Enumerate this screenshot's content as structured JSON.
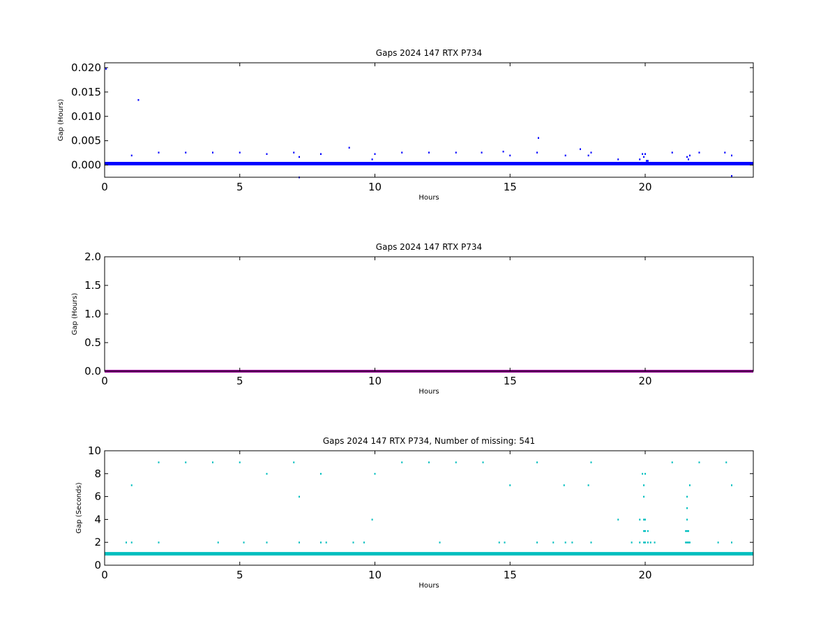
{
  "chart_data": [
    {
      "type": "scatter",
      "title": "Gaps 2024 147 RTX  P734",
      "xlabel": "Hours",
      "ylabel": "Gap (Hours)",
      "xlim": [
        0,
        24
      ],
      "ylim": [
        -0.0025,
        0.021
      ],
      "xticks": [
        "0",
        "5",
        "10",
        "15",
        "20"
      ],
      "xtick_values": [
        0,
        5,
        10,
        15,
        20
      ],
      "yticks": [
        "0.000",
        "0.005",
        "0.010",
        "0.015",
        "0.020"
      ],
      "ytick_values": [
        0,
        0.005,
        0.01,
        0.015,
        0.02
      ],
      "grid": false,
      "color": "#0000ff",
      "baseline": {
        "from": 0,
        "to": 24,
        "value": 0.0003
      },
      "series": [
        {
          "points": [
            [
              0.05,
              0.0198
            ],
            [
              1.25,
              0.0134
            ],
            [
              16.05,
              0.0056
            ],
            [
              17.6,
              0.0033
            ],
            [
              9.05,
              0.0036
            ],
            [
              1.0,
              0.002
            ],
            [
              2.0,
              0.0026
            ],
            [
              3.0,
              0.0026
            ],
            [
              4.0,
              0.0026
            ],
            [
              5.0,
              0.0026
            ],
            [
              6.0,
              0.0023
            ],
            [
              7.0,
              0.0026
            ],
            [
              7.2,
              0.0017
            ],
            [
              7.2,
              -0.0025
            ],
            [
              8.0,
              0.0023
            ],
            [
              9.9,
              0.0012
            ],
            [
              10.0,
              0.0023
            ],
            [
              11.0,
              0.0026
            ],
            [
              12.0,
              0.0026
            ],
            [
              13.0,
              0.0026
            ],
            [
              13.95,
              0.0026
            ],
            [
              14.75,
              0.0028
            ],
            [
              15.0,
              0.002
            ],
            [
              16.0,
              0.0026
            ],
            [
              17.05,
              0.002
            ],
            [
              17.9,
              0.002
            ],
            [
              18.0,
              0.0026
            ],
            [
              19.0,
              0.0012
            ],
            [
              19.8,
              0.0012
            ],
            [
              19.9,
              0.0023
            ],
            [
              19.95,
              0.0017
            ],
            [
              20.0,
              0.0023
            ],
            [
              20.05,
              0.0009
            ],
            [
              20.1,
              0.0009
            ],
            [
              21.0,
              0.0026
            ],
            [
              21.55,
              0.0017
            ],
            [
              21.6,
              0.0012
            ],
            [
              21.65,
              0.002
            ],
            [
              22.0,
              0.0026
            ],
            [
              22.95,
              0.0026
            ],
            [
              23.2,
              0.002
            ],
            [
              23.2,
              -0.0022
            ]
          ]
        }
      ]
    },
    {
      "type": "line",
      "title": "Gaps 2024 147 RTX  P734",
      "xlabel": "Hours",
      "ylabel": "Gap (Hours)",
      "xlim": [
        0,
        24
      ],
      "ylim": [
        0,
        2.0
      ],
      "xticks": [
        "0",
        "5",
        "10",
        "15",
        "20"
      ],
      "xtick_values": [
        0,
        5,
        10,
        15,
        20
      ],
      "yticks": [
        "0.0",
        "0.5",
        "1.0",
        "1.5",
        "2.0"
      ],
      "ytick_values": [
        0,
        0.5,
        1.0,
        1.5,
        2.0
      ],
      "grid": false,
      "color": "#990099",
      "series": [
        {
          "x": [
            0,
            24
          ],
          "values": [
            0,
            0
          ]
        }
      ]
    },
    {
      "type": "scatter",
      "title": "Gaps 2024 147 RTX  P734, Number of missing: 541",
      "xlabel": "Hours",
      "ylabel": "Gap (Seconds)",
      "xlim": [
        0,
        24
      ],
      "ylim": [
        0,
        10
      ],
      "xticks": [
        "0",
        "5",
        "10",
        "15",
        "20"
      ],
      "xtick_values": [
        0,
        5,
        10,
        15,
        20
      ],
      "yticks": [
        "0",
        "2",
        "4",
        "6",
        "8",
        "10"
      ],
      "ytick_values": [
        0,
        2,
        4,
        6,
        8,
        10
      ],
      "grid": false,
      "color": "#00bfbf",
      "baseline": {
        "from": 0,
        "to": 24,
        "value": 1
      },
      "series": [
        {
          "points": [
            [
              2.0,
              9
            ],
            [
              3.0,
              9
            ],
            [
              4.0,
              9
            ],
            [
              5.0,
              9
            ],
            [
              7.0,
              9
            ],
            [
              11.0,
              9
            ],
            [
              12.0,
              9
            ],
            [
              13.0,
              9
            ],
            [
              14.0,
              9
            ],
            [
              16.0,
              9
            ],
            [
              18.0,
              9
            ],
            [
              21.0,
              9
            ],
            [
              22.0,
              9
            ],
            [
              23.0,
              9
            ],
            [
              6.0,
              8
            ],
            [
              8.0,
              8
            ],
            [
              10.0,
              8
            ],
            [
              19.9,
              8
            ],
            [
              20.0,
              8
            ],
            [
              1.0,
              7
            ],
            [
              15.0,
              7
            ],
            [
              17.0,
              7
            ],
            [
              17.9,
              7
            ],
            [
              19.95,
              7
            ],
            [
              21.65,
              7
            ],
            [
              23.2,
              7
            ],
            [
              7.2,
              6
            ],
            [
              19.95,
              6
            ],
            [
              21.55,
              6
            ],
            [
              21.55,
              5
            ],
            [
              9.9,
              4
            ],
            [
              19.0,
              4
            ],
            [
              19.8,
              4
            ],
            [
              19.95,
              4
            ],
            [
              20.0,
              4
            ],
            [
              21.55,
              4
            ],
            [
              19.95,
              3
            ],
            [
              20.0,
              3
            ],
            [
              20.1,
              3
            ],
            [
              21.5,
              3
            ],
            [
              21.55,
              3
            ],
            [
              21.6,
              3
            ],
            [
              0.8,
              2
            ],
            [
              1.0,
              2
            ],
            [
              2.0,
              2
            ],
            [
              4.2,
              2
            ],
            [
              5.15,
              2
            ],
            [
              6.0,
              2
            ],
            [
              7.2,
              2
            ],
            [
              8.0,
              2
            ],
            [
              8.2,
              2
            ],
            [
              9.2,
              2
            ],
            [
              9.6,
              2
            ],
            [
              12.4,
              2
            ],
            [
              14.6,
              2
            ],
            [
              14.8,
              2
            ],
            [
              16.0,
              2
            ],
            [
              16.6,
              2
            ],
            [
              17.05,
              2
            ],
            [
              17.3,
              2
            ],
            [
              18.0,
              2
            ],
            [
              19.5,
              2
            ],
            [
              19.8,
              2
            ],
            [
              19.95,
              2
            ],
            [
              20.0,
              2
            ],
            [
              20.1,
              2
            ],
            [
              20.2,
              2
            ],
            [
              20.35,
              2
            ],
            [
              21.5,
              2
            ],
            [
              21.55,
              2
            ],
            [
              21.6,
              2
            ],
            [
              21.65,
              2
            ],
            [
              22.7,
              2
            ],
            [
              23.2,
              2
            ]
          ]
        }
      ]
    }
  ]
}
